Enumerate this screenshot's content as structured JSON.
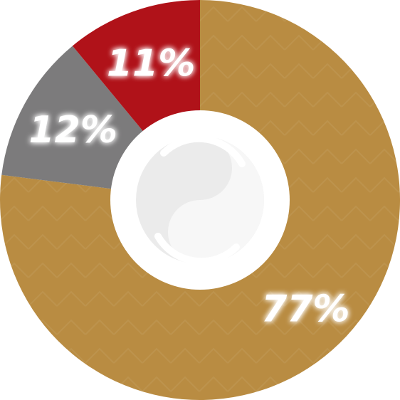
{
  "chart_data": {
    "type": "pie",
    "style": "donut",
    "slices": [
      {
        "value": 77,
        "label": "77%",
        "color": "#B98C42"
      },
      {
        "value": 12,
        "label": "12%",
        "color": "#7C7B7C"
      },
      {
        "value": 11,
        "label": "11%",
        "color": "#B01219"
      }
    ],
    "start_angle_deg": 0,
    "direction": "clockwise",
    "center_logo": "swirl-logo-icon",
    "legend": "none"
  }
}
